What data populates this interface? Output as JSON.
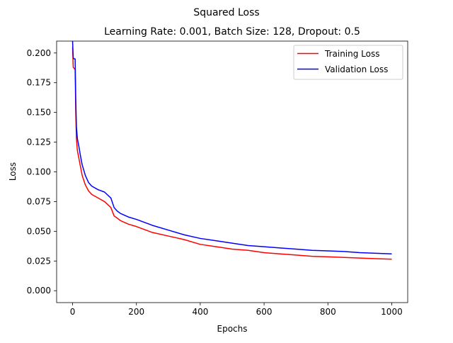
{
  "chart_data": {
    "type": "line",
    "suptitle": "Squared Loss",
    "title": "Learning Rate: 0.001, Batch Size: 128, Dropout: 0.5",
    "xlabel": "Epochs",
    "ylabel": "Loss",
    "xlim": [
      -50,
      1050
    ],
    "ylim": [
      -0.01,
      0.21
    ],
    "xticks": [
      0,
      200,
      400,
      600,
      800,
      1000
    ],
    "xtick_labels": [
      "0",
      "200",
      "400",
      "600",
      "800",
      "1000"
    ],
    "yticks": [
      0.0,
      0.025,
      0.05,
      0.075,
      0.1,
      0.125,
      0.15,
      0.175,
      0.2
    ],
    "ytick_labels": [
      "0.000",
      "0.025",
      "0.050",
      "0.075",
      "0.100",
      "0.125",
      "0.150",
      "0.175",
      "0.200"
    ],
    "grid": false,
    "legend_position": "upper right",
    "series": [
      {
        "name": "Training Loss",
        "color": "#ff0000",
        "x": [
          0,
          2,
          5,
          8,
          10,
          12,
          15,
          20,
          25,
          30,
          40,
          50,
          60,
          80,
          100,
          120,
          130,
          140,
          150,
          175,
          200,
          250,
          300,
          350,
          400,
          450,
          500,
          550,
          600,
          650,
          700,
          750,
          800,
          850,
          900,
          950,
          1000
        ],
        "y": [
          0.205,
          0.188,
          0.187,
          0.186,
          0.15,
          0.128,
          0.118,
          0.111,
          0.104,
          0.097,
          0.089,
          0.084,
          0.081,
          0.078,
          0.075,
          0.07,
          0.063,
          0.061,
          0.059,
          0.056,
          0.054,
          0.049,
          0.046,
          0.043,
          0.039,
          0.037,
          0.035,
          0.034,
          0.032,
          0.031,
          0.03,
          0.029,
          0.0285,
          0.028,
          0.0275,
          0.027,
          0.0265
        ]
      },
      {
        "name": "Validation Loss",
        "color": "#0000ff",
        "x": [
          0,
          2,
          5,
          8,
          10,
          12,
          15,
          20,
          25,
          30,
          40,
          50,
          60,
          80,
          100,
          120,
          130,
          140,
          150,
          175,
          200,
          250,
          300,
          350,
          400,
          450,
          500,
          550,
          600,
          650,
          700,
          750,
          800,
          850,
          900,
          950,
          1000
        ],
        "y": [
          0.21,
          0.196,
          0.195,
          0.195,
          0.16,
          0.138,
          0.128,
          0.121,
          0.113,
          0.106,
          0.097,
          0.091,
          0.088,
          0.085,
          0.083,
          0.078,
          0.07,
          0.067,
          0.065,
          0.062,
          0.06,
          0.055,
          0.051,
          0.047,
          0.044,
          0.042,
          0.04,
          0.038,
          0.037,
          0.036,
          0.035,
          0.034,
          0.0335,
          0.033,
          0.032,
          0.0315,
          0.031
        ]
      }
    ]
  }
}
